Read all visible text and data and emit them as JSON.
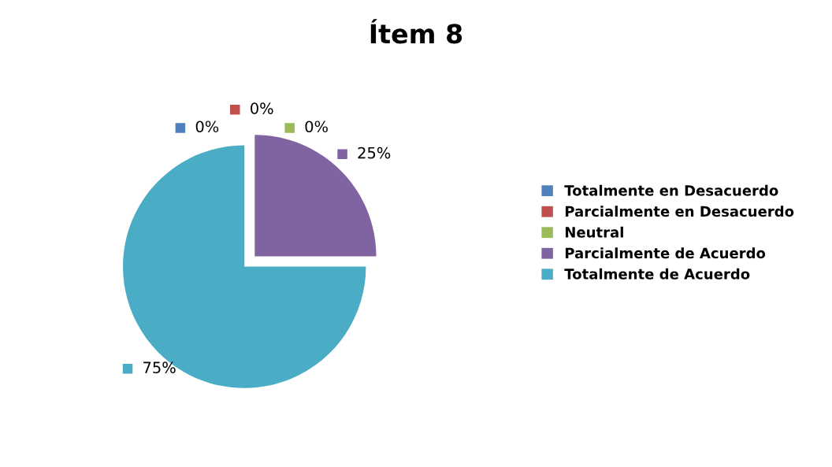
{
  "chart_data": {
    "type": "pie",
    "title": "Ítem 8",
    "categories": [
      "Totalmente en Desacuerdo",
      "Parcialmente en Desacuerdo",
      "Neutral",
      "Parcialmente de Acuerdo",
      "Totalmente de Acuerdo"
    ],
    "values": [
      0,
      0,
      0,
      25,
      75
    ],
    "colors": [
      "#4f81bd",
      "#c0504d",
      "#9bbb59",
      "#8064a2",
      "#4bacc6"
    ],
    "value_labels": [
      "0%",
      "0%",
      "0%",
      "25%",
      "75%"
    ],
    "legend": "right"
  }
}
